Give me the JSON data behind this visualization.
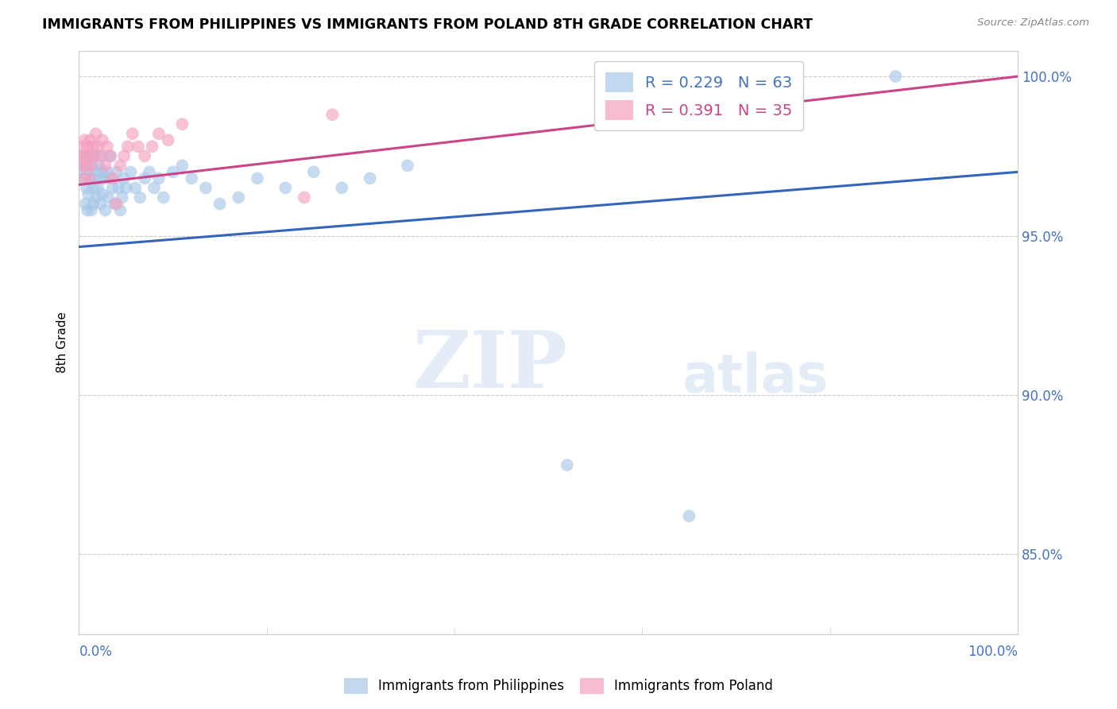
{
  "title": "IMMIGRANTS FROM PHILIPPINES VS IMMIGRANTS FROM POLAND 8TH GRADE CORRELATION CHART",
  "source": "Source: ZipAtlas.com",
  "ylabel": "8th Grade",
  "xlim": [
    0.0,
    1.0
  ],
  "ylim": [
    0.825,
    1.008
  ],
  "yticks": [
    0.85,
    0.9,
    0.95,
    1.0
  ],
  "ytick_labels": [
    "85.0%",
    "90.0%",
    "95.0%",
    "100.0%"
  ],
  "blue_R": 0.229,
  "blue_N": 63,
  "pink_R": 0.391,
  "pink_N": 35,
  "blue_color": "#a8c8e8",
  "pink_color": "#f4a0c0",
  "blue_line_color": "#3366bb",
  "pink_line_color": "#cc4488",
  "watermark_zip": "ZIP",
  "watermark_atlas": "atlas",
  "blue_scatter_x": [
    0.002,
    0.003,
    0.005,
    0.006,
    0.007,
    0.008,
    0.009,
    0.01,
    0.01,
    0.011,
    0.012,
    0.013,
    0.014,
    0.015,
    0.015,
    0.016,
    0.017,
    0.018,
    0.019,
    0.02,
    0.021,
    0.022,
    0.023,
    0.024,
    0.025,
    0.025,
    0.027,
    0.028,
    0.03,
    0.031,
    0.033,
    0.034,
    0.036,
    0.038,
    0.04,
    0.042,
    0.044,
    0.046,
    0.048,
    0.05,
    0.055,
    0.06,
    0.065,
    0.07,
    0.075,
    0.08,
    0.085,
    0.09,
    0.1,
    0.11,
    0.12,
    0.135,
    0.15,
    0.17,
    0.19,
    0.22,
    0.25,
    0.28,
    0.31,
    0.35,
    0.52,
    0.65,
    0.87
  ],
  "blue_scatter_y": [
    0.97,
    0.975,
    0.968,
    0.972,
    0.96,
    0.965,
    0.958,
    0.97,
    0.963,
    0.975,
    0.968,
    0.958,
    0.972,
    0.965,
    0.96,
    0.975,
    0.968,
    0.962,
    0.97,
    0.965,
    0.972,
    0.968,
    0.96,
    0.975,
    0.97,
    0.963,
    0.968,
    0.958,
    0.97,
    0.962,
    0.968,
    0.975,
    0.965,
    0.96,
    0.97,
    0.965,
    0.958,
    0.962,
    0.968,
    0.965,
    0.97,
    0.965,
    0.962,
    0.968,
    0.97,
    0.965,
    0.968,
    0.962,
    0.97,
    0.972,
    0.968,
    0.965,
    0.96,
    0.962,
    0.968,
    0.965,
    0.97,
    0.965,
    0.968,
    0.972,
    0.878,
    0.862,
    1.0
  ],
  "pink_scatter_x": [
    0.002,
    0.003,
    0.004,
    0.005,
    0.006,
    0.007,
    0.008,
    0.009,
    0.01,
    0.011,
    0.012,
    0.013,
    0.015,
    0.016,
    0.018,
    0.02,
    0.022,
    0.025,
    0.028,
    0.03,
    0.033,
    0.036,
    0.04,
    0.044,
    0.048,
    0.052,
    0.057,
    0.063,
    0.07,
    0.078,
    0.085,
    0.095,
    0.11,
    0.24,
    0.27
  ],
  "pink_scatter_y": [
    0.975,
    0.972,
    0.978,
    0.968,
    0.98,
    0.975,
    0.972,
    0.978,
    0.975,
    0.968,
    0.98,
    0.972,
    0.978,
    0.975,
    0.982,
    0.978,
    0.975,
    0.98,
    0.972,
    0.978,
    0.975,
    0.968,
    0.96,
    0.972,
    0.975,
    0.978,
    0.982,
    0.978,
    0.975,
    0.978,
    0.982,
    0.98,
    0.985,
    0.962,
    0.988
  ],
  "blue_line_x0": 0.0,
  "blue_line_y0": 0.9465,
  "blue_line_x1": 1.0,
  "blue_line_y1": 0.97,
  "pink_line_x0": 0.0,
  "pink_line_y0": 0.966,
  "pink_line_x1": 1.0,
  "pink_line_y1": 1.0
}
